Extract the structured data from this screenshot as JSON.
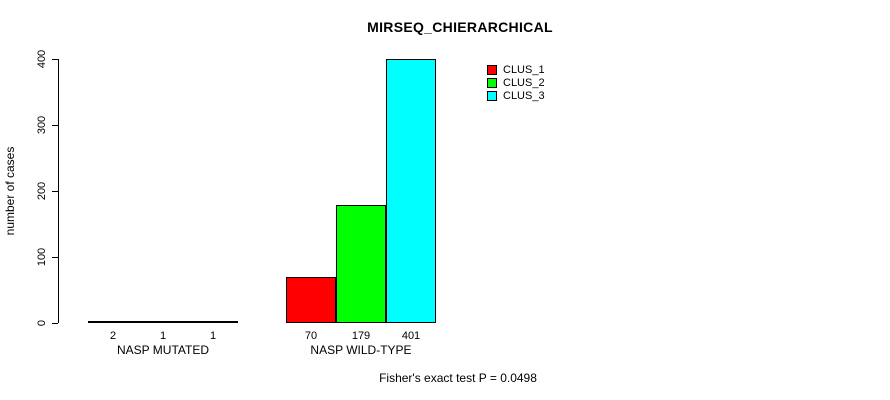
{
  "chart_data": {
    "type": "bar",
    "title": "MIRSEQ_CHIERARCHICAL",
    "ylabel": "number of cases",
    "xlabel": "",
    "ylim": [
      0,
      400
    ],
    "yticks": [
      0,
      100,
      200,
      300,
      400
    ],
    "categories": [
      "NASP MUTATED",
      "NASP WILD-TYPE"
    ],
    "series": [
      {
        "name": "CLUS_1",
        "color": "#ff0000",
        "values": [
          2,
          70
        ]
      },
      {
        "name": "CLUS_2",
        "color": "#00ff00",
        "values": [
          1,
          179
        ]
      },
      {
        "name": "CLUS_3",
        "color": "#00ffff",
        "values": [
          1,
          401
        ]
      }
    ],
    "legend_position": "top-right",
    "grid": false,
    "annotation": "Fisher's exact test P = 0.0498"
  }
}
